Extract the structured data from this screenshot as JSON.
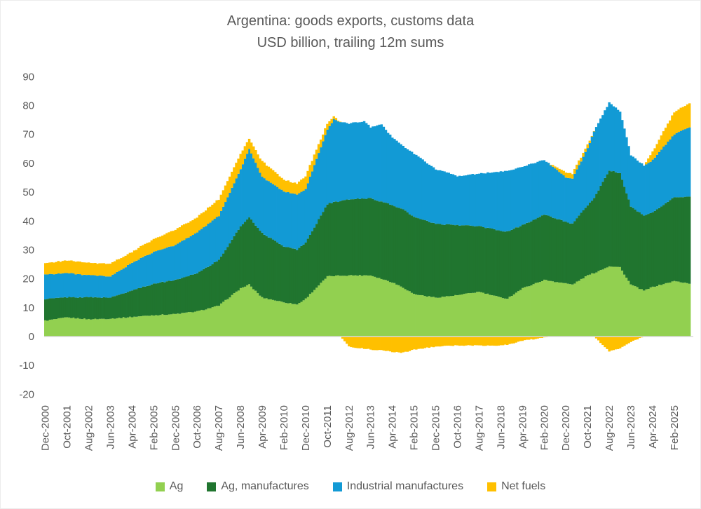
{
  "title": {
    "line1": "Argentina: goods exports, customs data",
    "line2": "USD billion, trailing 12m sums"
  },
  "y_axis": {
    "ticks": [
      90,
      80,
      70,
      60,
      50,
      40,
      30,
      20,
      10,
      0,
      -10,
      -20
    ]
  },
  "x_axis": {
    "label_every_months": 10,
    "labels": [
      "Dec-2000",
      "Oct-2001",
      "Aug-2002",
      "Jun-2003",
      "Apr-2004",
      "Feb-2005",
      "Dec-2005",
      "Oct-2006",
      "Aug-2007",
      "Jun-2008",
      "Apr-2009",
      "Feb-2010",
      "Dec-2010",
      "Oct-2011",
      "Aug-2012",
      "Jun-2013",
      "Apr-2014",
      "Feb-2015",
      "Dec-2015",
      "Oct-2016",
      "Aug-2017",
      "Jun-2018",
      "Apr-2019",
      "Feb-2020",
      "Dec-2020",
      "Oct-2021",
      "Aug-2022",
      "Jun-2023",
      "Apr-2024",
      "Feb-2025"
    ]
  },
  "legend": {
    "items": [
      {
        "label": "Ag",
        "color": "#92D050"
      },
      {
        "label": "Ag, manufactures",
        "color": "#20752F"
      },
      {
        "label": "Industrial manufactures",
        "color": "#129AD5"
      },
      {
        "label": "Net fuels",
        "color": "#FFC000"
      }
    ]
  },
  "chart_data": {
    "type": "area",
    "variant": "stacked monthly columns, net fuels can be negative (drawn below zero)",
    "title": "Argentina: goods exports, customs data",
    "subtitle": "USD billion, trailing 12m sums",
    "ylabel": "USD billion",
    "ylim": [
      -20,
      90
    ],
    "y_tick_step": 10,
    "grid": false,
    "legend_position": "bottom",
    "x_start": "Dec-2000",
    "x_end": "Sep-2025",
    "months_total": 298,
    "series_names": [
      "Ag",
      "Ag, manufactures",
      "Industrial manufactures",
      "Net fuels"
    ],
    "series_colors": [
      "#92D050",
      "#20752F",
      "#129AD5",
      "#FFC000"
    ],
    "note": "v = [Ag, Ag manufactures, Industrial manufactures, Net fuels] in USD bn; m = months since Dec-2000; monthly columns linearly interpolated between samples",
    "samples": [
      {
        "m": 0,
        "x": "Dec-2000",
        "v": [
          5.5,
          7.5,
          8.5,
          4.0
        ]
      },
      {
        "m": 10,
        "x": "Oct-2001",
        "v": [
          6.6,
          7.0,
          8.4,
          4.3
        ]
      },
      {
        "m": 20,
        "x": "Aug-2002",
        "v": [
          6.0,
          7.6,
          7.6,
          4.3
        ]
      },
      {
        "m": 30,
        "x": "Jun-2003",
        "v": [
          6.2,
          7.3,
          7.3,
          4.4
        ]
      },
      {
        "m": 40,
        "x": "Apr-2004",
        "v": [
          6.8,
          9.2,
          9.6,
          3.7
        ]
      },
      {
        "m": 50,
        "x": "Feb-2005",
        "v": [
          7.4,
          10.9,
          11.0,
          4.4
        ]
      },
      {
        "m": 60,
        "x": "Dec-2005",
        "v": [
          7.8,
          11.8,
          12.1,
          5.3
        ]
      },
      {
        "m": 70,
        "x": "Oct-2006",
        "v": [
          8.7,
          13.3,
          14.2,
          5.2
        ]
      },
      {
        "m": 80,
        "x": "Aug-2007",
        "v": [
          10.7,
          15.8,
          15.3,
          5.7
        ]
      },
      {
        "m": 90,
        "x": "Jun-2008",
        "v": [
          16.7,
          21.5,
          19.8,
          5.3
        ]
      },
      {
        "m": 94,
        "x": "Oct-2008",
        "v": [
          18.0,
          23.4,
          23.5,
          3.6
        ]
      },
      {
        "m": 100,
        "x": "Apr-2009",
        "v": [
          13.5,
          22.3,
          19.4,
          5.4
        ]
      },
      {
        "m": 110,
        "x": "Feb-2010",
        "v": [
          11.9,
          19.4,
          19.0,
          4.1
        ]
      },
      {
        "m": 116,
        "x": "Aug-2010",
        "v": [
          11.1,
          19.0,
          19.0,
          3.7
        ]
      },
      {
        "m": 120,
        "x": "Dec-2010",
        "v": [
          13.1,
          19.4,
          18.6,
          4.5
        ]
      },
      {
        "m": 130,
        "x": "Oct-2011",
        "v": [
          20.8,
          25.1,
          25.9,
          2.0
        ]
      },
      {
        "m": 133,
        "x": "Jan-2012",
        "v": [
          21.0,
          25.5,
          28.7,
          1.0
        ]
      },
      {
        "m": 136,
        "x": "Apr-2012",
        "v": [
          21.1,
          25.8,
          27.5,
          0.0
        ]
      },
      {
        "m": 140,
        "x": "Aug-2012",
        "v": [
          21.2,
          26.3,
          26.3,
          -3.5
        ]
      },
      {
        "m": 147,
        "x": "Mar-2013",
        "v": [
          21.2,
          26.6,
          26.8,
          -4.2
        ]
      },
      {
        "m": 150,
        "x": "Jun-2013",
        "v": [
          21.2,
          26.7,
          24.6,
          -4.5
        ]
      },
      {
        "m": 155,
        "x": "Nov-2013",
        "v": [
          20.0,
          26.7,
          26.7,
          -4.8
        ]
      },
      {
        "m": 160,
        "x": "Apr-2014",
        "v": [
          18.8,
          26.7,
          23.4,
          -5.3
        ]
      },
      {
        "m": 165,
        "x": "Sep-2014",
        "v": [
          17.0,
          27.0,
          22.0,
          -5.6
        ]
      },
      {
        "m": 170,
        "x": "Feb-2015",
        "v": [
          14.7,
          26.7,
          21.9,
          -4.5
        ]
      },
      {
        "m": 180,
        "x": "Dec-2015",
        "v": [
          13.5,
          25.5,
          19.0,
          -3.5
        ]
      },
      {
        "m": 190,
        "x": "Oct-2016",
        "v": [
          14.3,
          24.3,
          17.0,
          -3.1
        ]
      },
      {
        "m": 200,
        "x": "Aug-2017",
        "v": [
          15.5,
          22.7,
          18.2,
          -3.1
        ]
      },
      {
        "m": 210,
        "x": "Jun-2018",
        "v": [
          13.5,
          23.1,
          20.6,
          -3.1
        ]
      },
      {
        "m": 213,
        "x": "Sep-2018",
        "v": [
          13.2,
          23.2,
          21.0,
          -2.8
        ]
      },
      {
        "m": 220,
        "x": "Apr-2019",
        "v": [
          16.7,
          21.9,
          20.2,
          -1.5
        ]
      },
      {
        "m": 230,
        "x": "Feb-2020",
        "v": [
          19.6,
          22.6,
          19.0,
          -0.3
        ]
      },
      {
        "m": 240,
        "x": "Dec-2020",
        "v": [
          18.4,
          21.4,
          15.4,
          1.6
        ]
      },
      {
        "m": 243,
        "x": "Mar-2021",
        "v": [
          18.0,
          21.0,
          15.8,
          1.7
        ]
      },
      {
        "m": 250,
        "x": "Oct-2021",
        "v": [
          21.2,
          24.3,
          19.8,
          1.2
        ]
      },
      {
        "m": 253,
        "x": "Jan-2022",
        "v": [
          22.0,
          26.0,
          23.0,
          0.0
        ]
      },
      {
        "m": 260,
        "x": "Aug-2022",
        "v": [
          24.4,
          33.2,
          23.5,
          -5.1
        ]
      },
      {
        "m": 265,
        "x": "Jan-2023",
        "v": [
          24.0,
          32.5,
          21.5,
          -4.0
        ]
      },
      {
        "m": 270,
        "x": "Jun-2023",
        "v": [
          18.0,
          27.1,
          17.8,
          -1.9
        ]
      },
      {
        "m": 276,
        "x": "Dec-2023",
        "v": [
          15.9,
          25.9,
          17.4,
          0.0
        ]
      },
      {
        "m": 280,
        "x": "Apr-2024",
        "v": [
          17.2,
          25.8,
          18.2,
          2.9
        ]
      },
      {
        "m": 290,
        "x": "Feb-2025",
        "v": [
          19.2,
          29.1,
          21.8,
          7.7
        ]
      },
      {
        "m": 297,
        "x": "Sep-2025",
        "v": [
          18.4,
          30.0,
          24.0,
          8.3
        ]
      }
    ]
  }
}
